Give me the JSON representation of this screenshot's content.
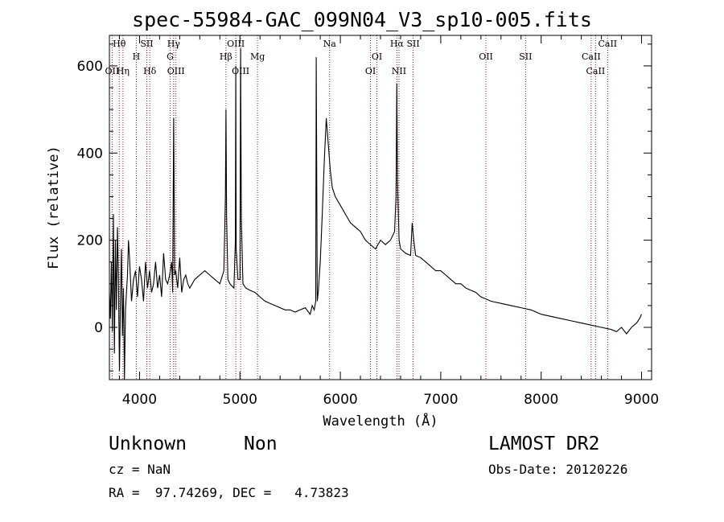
{
  "figure": {
    "title": "spec-55984-GAC_099N04_V3_sp10-005.fits",
    "object_class": "Unknown",
    "object_subclass": "Non",
    "survey": "LAMOST DR2",
    "redshift_text": "cz = NaN",
    "obs_date_text": "Obs-Date: 20120226",
    "coords_text": "RA =  97.74269, DEC =   4.73823"
  },
  "colors": {
    "spectrum": "#000000",
    "line_markers": "#8b1a1a",
    "axes": "#000000",
    "background": "#ffffff"
  },
  "chart_data": {
    "type": "line",
    "title": "spec-55984-GAC_099N04_V3_sp10-005.fits",
    "xlabel": "Wavelength (Å)",
    "ylabel": "Flux (relative)",
    "xlim": [
      3700,
      9100
    ],
    "ylim": [
      -120,
      670
    ],
    "xticks": [
      4000,
      5000,
      6000,
      7000,
      8000,
      9000
    ],
    "yticks": [
      0,
      200,
      400,
      600
    ],
    "grid": false,
    "series": [
      {
        "x": [
          3700,
          3710,
          3720,
          3730,
          3740,
          3750,
          3760,
          3770,
          3780,
          3790,
          3800,
          3810,
          3820,
          3830,
          3840,
          3850,
          3860,
          3870,
          3880,
          3890,
          3900,
          3920,
          3940,
          3960,
          3980,
          4000,
          4020,
          4040,
          4060,
          4080,
          4100,
          4120,
          4140,
          4160,
          4180,
          4200,
          4220,
          4240,
          4260,
          4280,
          4300,
          4320,
          4330,
          4340,
          4350,
          4360,
          4380,
          4400,
          4420,
          4440,
          4460,
          4480,
          4500,
          4550,
          4600,
          4650,
          4700,
          4750,
          4800,
          4840,
          4855,
          4861,
          4867,
          4880,
          4900,
          4940,
          4955,
          4959,
          4963,
          4980,
          5000,
          5007,
          5014,
          5030,
          5060,
          5100,
          5150,
          5200,
          5250,
          5300,
          5350,
          5400,
          5450,
          5500,
          5550,
          5600,
          5650,
          5700,
          5720,
          5740,
          5755,
          5760,
          5770,
          5780,
          5800,
          5820,
          5840,
          5860,
          5880,
          5900,
          5920,
          5950,
          6000,
          6050,
          6100,
          6150,
          6200,
          6250,
          6300,
          6350,
          6400,
          6450,
          6500,
          6540,
          6555,
          6563,
          6570,
          6585,
          6600,
          6650,
          6700,
          6716,
          6731,
          6750,
          6800,
          6850,
          6900,
          6950,
          7000,
          7050,
          7100,
          7150,
          7200,
          7250,
          7300,
          7350,
          7400,
          7450,
          7500,
          7600,
          7700,
          7800,
          7900,
          8000,
          8100,
          8200,
          8300,
          8400,
          8500,
          8600,
          8700,
          8750,
          8800,
          8850,
          8900,
          8950,
          8980,
          9000
        ],
        "y": [
          80,
          20,
          150,
          -10,
          260,
          -60,
          200,
          40,
          230,
          120,
          -100,
          60,
          180,
          -20,
          90,
          -130,
          40,
          80,
          120,
          200,
          160,
          60,
          110,
          130,
          70,
          140,
          110,
          60,
          150,
          90,
          130,
          80,
          100,
          150,
          90,
          120,
          70,
          170,
          110,
          100,
          120,
          150,
          80,
          480,
          120,
          130,
          90,
          160,
          80,
          110,
          120,
          100,
          90,
          110,
          120,
          130,
          120,
          110,
          100,
          130,
          300,
          500,
          250,
          110,
          100,
          90,
          200,
          600,
          180,
          110,
          110,
          640,
          250,
          100,
          90,
          85,
          80,
          70,
          60,
          55,
          50,
          45,
          40,
          40,
          35,
          40,
          45,
          30,
          50,
          40,
          60,
          620,
          60,
          80,
          150,
          260,
          380,
          480,
          420,
          360,
          320,
          300,
          280,
          260,
          240,
          230,
          220,
          200,
          190,
          180,
          200,
          190,
          200,
          220,
          300,
          560,
          330,
          200,
          180,
          170,
          165,
          240,
          200,
          165,
          160,
          150,
          140,
          130,
          130,
          120,
          110,
          100,
          100,
          90,
          85,
          80,
          70,
          65,
          60,
          55,
          50,
          45,
          40,
          30,
          25,
          20,
          15,
          10,
          5,
          0,
          -5,
          -10,
          0,
          -15,
          0,
          10,
          20,
          30
        ],
        "line_markers": [
          {
            "label": "Hθ",
            "x": 3798
          },
          {
            "label": "OII",
            "x": 3727
          },
          {
            "label": "Hη",
            "x": 3835
          },
          {
            "label": "H",
            "x": 3968
          },
          {
            "label": "SII",
            "x": 4072
          },
          {
            "label": "Hδ",
            "x": 4102
          },
          {
            "label": "Hγ",
            "x": 4340
          },
          {
            "label": "G",
            "x": 4305
          },
          {
            "label": "OIII",
            "x": 4363
          },
          {
            "label": "Hβ",
            "x": 4861
          },
          {
            "label": "OIII",
            "x": 4959
          },
          {
            "label": "OIII",
            "x": 5007
          },
          {
            "label": "Mg",
            "x": 5175
          },
          {
            "label": "Na",
            "x": 5893
          },
          {
            "label": "OI",
            "x": 6300
          },
          {
            "label": "OI",
            "x": 6364
          },
          {
            "label": "Hα",
            "x": 6563
          },
          {
            "label": "NII",
            "x": 6584
          },
          {
            "label": "SII",
            "x": 6725
          },
          {
            "label": "OII",
            "x": 7450
          },
          {
            "label": "SII",
            "x": 7845
          },
          {
            "label": "CaII",
            "x": 8498
          },
          {
            "label": "CaII",
            "x": 8542
          },
          {
            "label": "CaII",
            "x": 8662
          }
        ]
      }
    ]
  }
}
